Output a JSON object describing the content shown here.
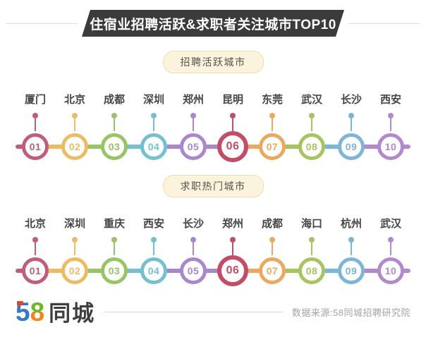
{
  "header": {
    "title": "住宿业招聘活跃&求职者关注城市TOP10"
  },
  "sections": [
    {
      "badge": "招聘活跃城市",
      "items": [
        {
          "rank": "01",
          "city": "厦门"
        },
        {
          "rank": "02",
          "city": "北京"
        },
        {
          "rank": "03",
          "city": "成都"
        },
        {
          "rank": "04",
          "city": "深圳"
        },
        {
          "rank": "05",
          "city": "郑州"
        },
        {
          "rank": "06",
          "city": "昆明"
        },
        {
          "rank": "07",
          "city": "东莞"
        },
        {
          "rank": "08",
          "city": "武汉"
        },
        {
          "rank": "09",
          "city": "长沙"
        },
        {
          "rank": "10",
          "city": "西安"
        }
      ]
    },
    {
      "badge": "求职热门城市",
      "items": [
        {
          "rank": "01",
          "city": "北京"
        },
        {
          "rank": "02",
          "city": "深圳"
        },
        {
          "rank": "03",
          "city": "重庆"
        },
        {
          "rank": "04",
          "city": "西安"
        },
        {
          "rank": "05",
          "city": "长沙"
        },
        {
          "rank": "06",
          "city": "郑州"
        },
        {
          "rank": "07",
          "city": "成都"
        },
        {
          "rank": "08",
          "city": "海口"
        },
        {
          "rank": "09",
          "city": "杭州"
        },
        {
          "rank": "10",
          "city": "武汉"
        }
      ]
    }
  ],
  "palette": {
    "rank_colors": [
      "#c05e78",
      "#ecbc64",
      "#97c464",
      "#74c0cf",
      "#aa86cd",
      "#c14e66",
      "#eaa95e",
      "#a6c45f",
      "#7db5d8",
      "#b289cc"
    ],
    "gap_color_indices": [
      1,
      2,
      3,
      4,
      4,
      6,
      7,
      8,
      9
    ],
    "banner_bg": "#3b3b3b",
    "badge_bg": "#fcf3dd",
    "badge_border": "#eddcb4",
    "logo_blue": "#3779c5",
    "logo_green": "#6cb72d",
    "logo_orange": "#f1861d",
    "logo_red": "#e83e2f"
  },
  "footer": {
    "logo_5": "5",
    "logo_8": "8",
    "logo_city": "同城",
    "source": "数据来源:58同城招聘研究院"
  },
  "chart_data": {
    "type": "table",
    "title": "住宿业招聘活跃&求职者关注城市TOP10",
    "series": [
      {
        "name": "招聘活跃城市",
        "categories": [
          "01",
          "02",
          "03",
          "04",
          "05",
          "06",
          "07",
          "08",
          "09",
          "10"
        ],
        "values": [
          "厦门",
          "北京",
          "成都",
          "深圳",
          "郑州",
          "昆明",
          "东莞",
          "武汉",
          "长沙",
          "西安"
        ]
      },
      {
        "name": "求职热门城市",
        "categories": [
          "01",
          "02",
          "03",
          "04",
          "05",
          "06",
          "07",
          "08",
          "09",
          "10"
        ],
        "values": [
          "北京",
          "深圳",
          "重庆",
          "西安",
          "长沙",
          "郑州",
          "成都",
          "海口",
          "杭州",
          "武汉"
        ]
      }
    ],
    "legend_position": "none",
    "source": "数据来源:58同城招聘研究院"
  }
}
